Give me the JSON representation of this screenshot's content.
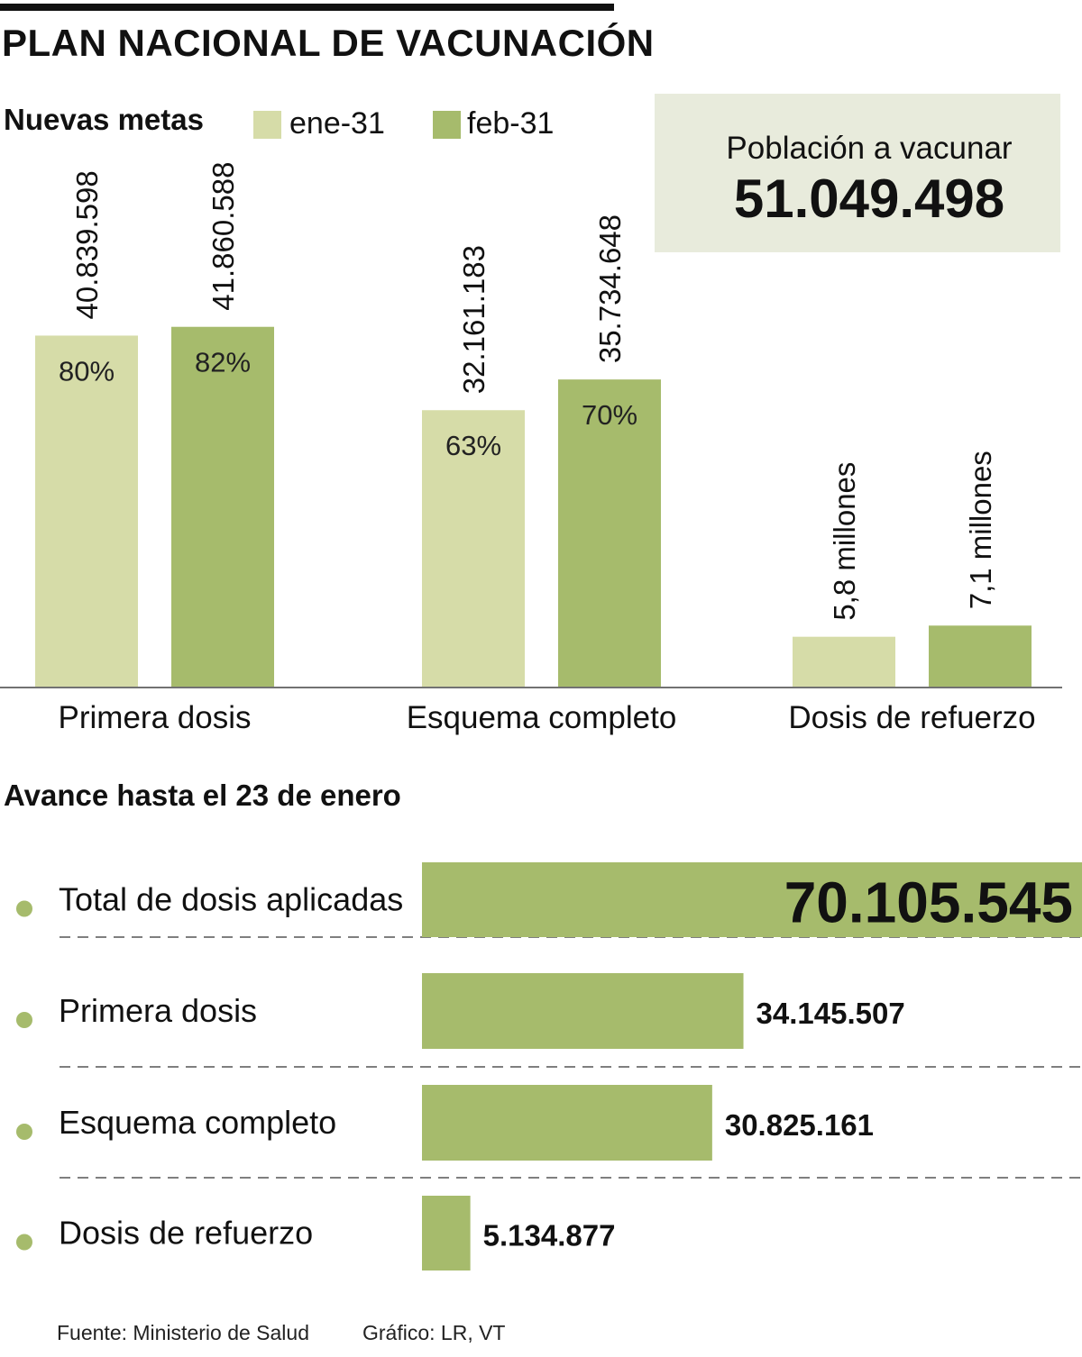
{
  "title": "PLAN NACIONAL DE VACUNACIÓN",
  "subtitle": "Nuevas metas",
  "legend": [
    {
      "label": "ene-31",
      "color": "#d6dca8"
    },
    {
      "label": "feb-31",
      "color": "#a6bb6c"
    }
  ],
  "population": {
    "label": "Población a vacunar",
    "value": "51.049.498"
  },
  "section2_title": "Avance hasta el 23 de enero",
  "footer": {
    "source": "Fuente: Ministerio de Salud",
    "credit": "Gráfico: LR, VT"
  },
  "colors": {
    "light": "#d6dca8",
    "dark": "#a6bb6c",
    "box": "#e8ebdc",
    "bullet": "#a6bb6c"
  },
  "chart_data": [
    {
      "type": "bar",
      "title": "Nuevas metas",
      "categories": [
        "Primera dosis",
        "Esquema completo",
        "Dosis de refuerzo"
      ],
      "series": [
        {
          "name": "ene-31",
          "values": [
            40839598,
            32161183,
            5800000
          ],
          "labels": [
            "40.839.598",
            "32.161.183",
            "5,8 millones"
          ],
          "percents": [
            "80%",
            "63%",
            null
          ]
        },
        {
          "name": "feb-31",
          "values": [
            41860588,
            35734648,
            7100000
          ],
          "labels": [
            "41.860.588",
            "35.734.648",
            "7,1 millones"
          ],
          "percents": [
            "82%",
            "70%",
            null
          ]
        }
      ],
      "ylim": [
        0,
        52000000
      ]
    },
    {
      "type": "bar",
      "orientation": "horizontal",
      "title": "Avance hasta el 23 de enero",
      "categories": [
        "Total de dosis aplicadas",
        "Primera dosis",
        "Esquema completo",
        "Dosis de refuerzo"
      ],
      "values": [
        70105545,
        34145507,
        30825161,
        5134877
      ],
      "labels": [
        "70.105.545",
        "34.145.507",
        "30.825.161",
        "5.134.877"
      ],
      "xlim": [
        0,
        70105545
      ]
    }
  ]
}
